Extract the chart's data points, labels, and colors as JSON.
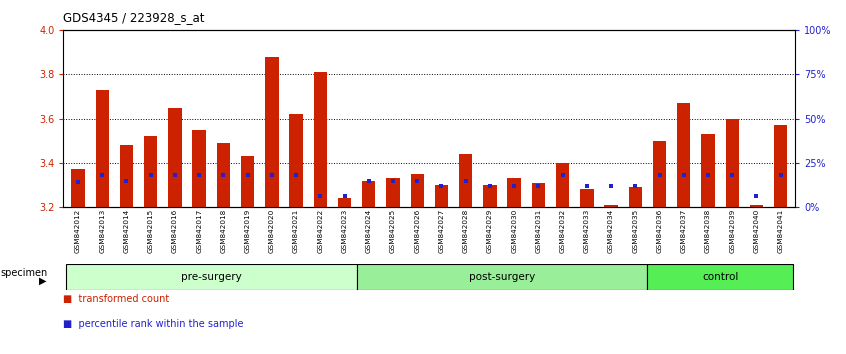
{
  "title": "GDS4345 / 223928_s_at",
  "samples": [
    "GSM842012",
    "GSM842013",
    "GSM842014",
    "GSM842015",
    "GSM842016",
    "GSM842017",
    "GSM842018",
    "GSM842019",
    "GSM842020",
    "GSM842021",
    "GSM842022",
    "GSM842023",
    "GSM842024",
    "GSM842025",
    "GSM842026",
    "GSM842027",
    "GSM842028",
    "GSM842029",
    "GSM842030",
    "GSM842031",
    "GSM842032",
    "GSM842033",
    "GSM842034",
    "GSM842035",
    "GSM842036",
    "GSM842037",
    "GSM842038",
    "GSM842039",
    "GSM842040",
    "GSM842041"
  ],
  "red_values": [
    3.37,
    3.73,
    3.48,
    3.52,
    3.65,
    3.55,
    3.49,
    3.43,
    3.88,
    3.62,
    3.81,
    3.24,
    3.32,
    3.33,
    3.35,
    3.3,
    3.44,
    3.3,
    3.33,
    3.31,
    3.4,
    3.28,
    3.21,
    3.29,
    3.5,
    3.67,
    3.53,
    3.6,
    3.21,
    3.57
  ],
  "blue_values": [
    14,
    18,
    15,
    18,
    18,
    18,
    18,
    18,
    18,
    18,
    6,
    6,
    15,
    15,
    15,
    12,
    15,
    12,
    12,
    12,
    18,
    12,
    12,
    12,
    18,
    18,
    18,
    18,
    6,
    18
  ],
  "groups": [
    {
      "label": "pre-surgery",
      "start": 0,
      "end": 12
    },
    {
      "label": "post-surgery",
      "start": 12,
      "end": 24
    },
    {
      "label": "control",
      "start": 24,
      "end": 30
    }
  ],
  "group_colors": [
    "#ccffcc",
    "#99ee99",
    "#55ee55"
  ],
  "ylim_left": [
    3.2,
    4.0
  ],
  "ylim_right": [
    0,
    100
  ],
  "yticks_left": [
    3.2,
    3.4,
    3.6,
    3.8,
    4.0
  ],
  "yticks_right": [
    0,
    25,
    50,
    75,
    100
  ],
  "ytick_labels_right": [
    "0%",
    "25%",
    "50%",
    "75%",
    "100%"
  ],
  "bar_color": "#cc2200",
  "dot_color": "#2222cc",
  "bar_width": 0.55,
  "tick_label_color_left": "#cc2200",
  "tick_label_color_right": "#2222cc",
  "legend_items": [
    "transformed count",
    "percentile rank within the sample"
  ],
  "legend_colors": [
    "#cc2200",
    "#2222cc"
  ],
  "specimen_label": "specimen"
}
